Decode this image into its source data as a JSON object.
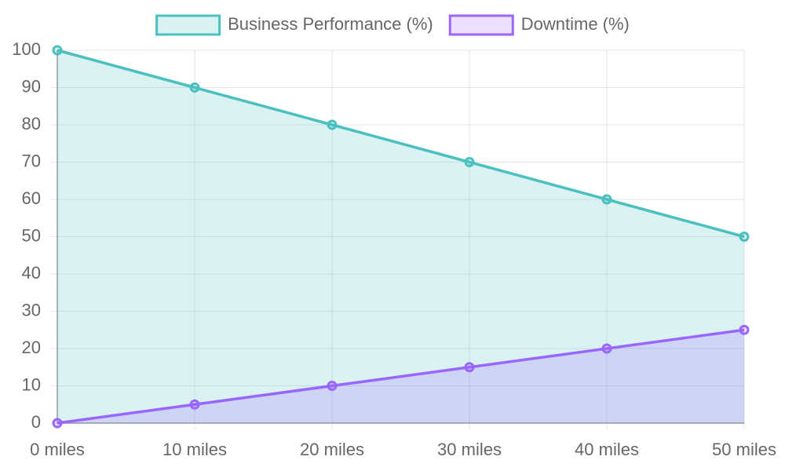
{
  "chart_data": {
    "type": "line",
    "categories": [
      "0 miles",
      "10 miles",
      "20 miles",
      "30 miles",
      "40 miles",
      "50 miles"
    ],
    "series": [
      {
        "name": "Business Performance (%)",
        "color": "#4bc0c0",
        "values": [
          100,
          90,
          80,
          70,
          60,
          50
        ]
      },
      {
        "name": "Downtime (%)",
        "color": "#9966ff",
        "values": [
          0,
          5,
          10,
          15,
          20,
          25
        ]
      }
    ],
    "ylim": [
      0,
      100
    ],
    "yticks": [
      0,
      10,
      20,
      30,
      40,
      50,
      60,
      70,
      80,
      90,
      100
    ],
    "grid": true,
    "legend": "top",
    "fill": true
  }
}
